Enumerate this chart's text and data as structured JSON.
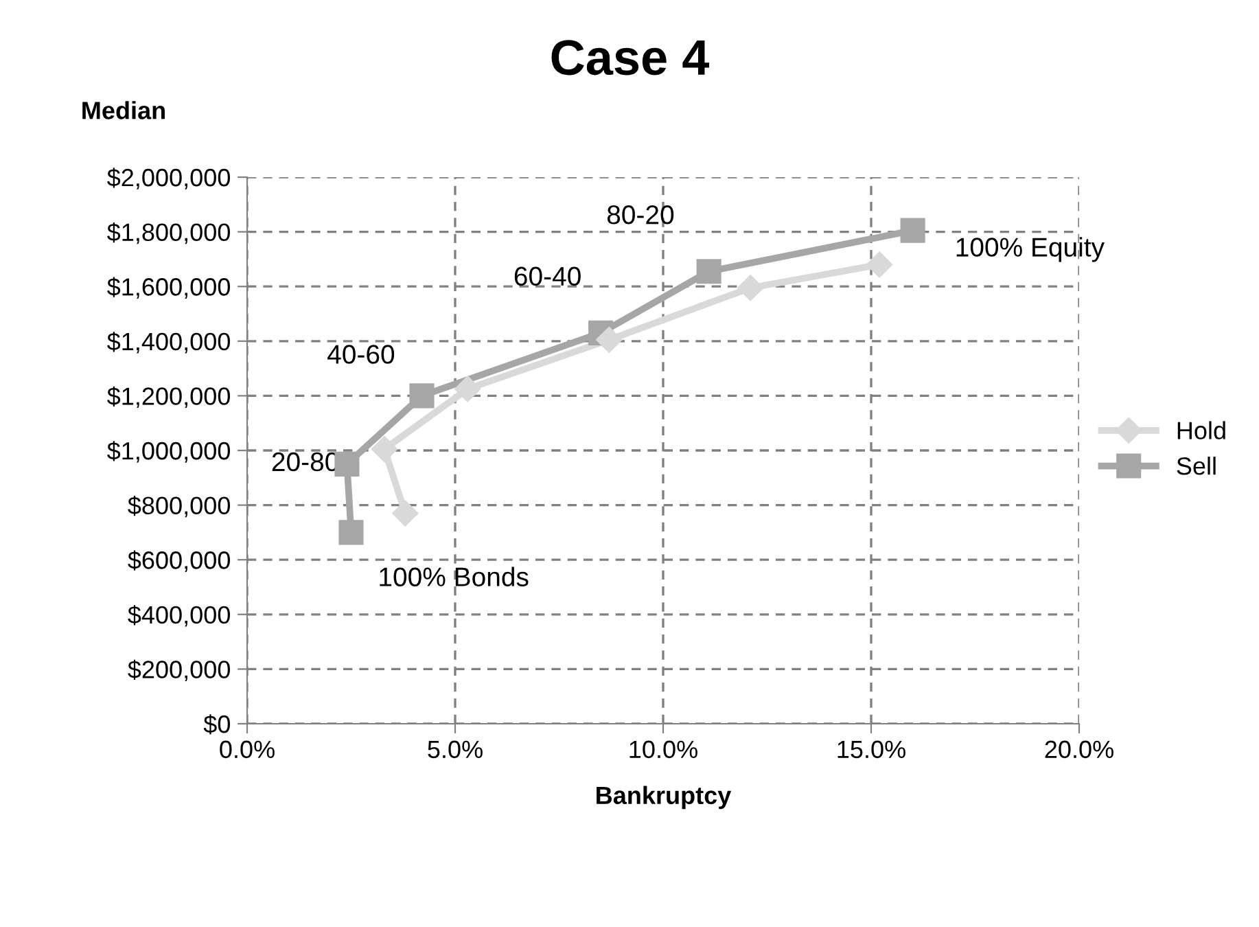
{
  "chart_data": {
    "type": "line",
    "title": "Case 4",
    "xlabel": "Bankruptcy",
    "ylabel": "Median",
    "xlim": [
      0,
      20
    ],
    "xticks": [
      {
        "value": 0,
        "label": "0.0%"
      },
      {
        "value": 5,
        "label": "5.0%"
      },
      {
        "value": 10,
        "label": "10.0%"
      },
      {
        "value": 15,
        "label": "15.0%"
      },
      {
        "value": 20,
        "label": "20.0%"
      }
    ],
    "ylim": [
      0,
      2000000
    ],
    "yticks": [
      {
        "value": 0,
        "label": "$0"
      },
      {
        "value": 200000,
        "label": "$200,000"
      },
      {
        "value": 400000,
        "label": "$400,000"
      },
      {
        "value": 600000,
        "label": "$600,000"
      },
      {
        "value": 800000,
        "label": "$800,000"
      },
      {
        "value": 1000000,
        "label": "$1,000,000"
      },
      {
        "value": 1200000,
        "label": "$1,200,000"
      },
      {
        "value": 1400000,
        "label": "$1,400,000"
      },
      {
        "value": 1600000,
        "label": "$1,600,000"
      },
      {
        "value": 1800000,
        "label": "$1,800,000"
      },
      {
        "value": 2000000,
        "label": "$2,000,000"
      }
    ],
    "grid": true,
    "legend": "right",
    "line_style": "solid",
    "series": [
      {
        "name": "Hold",
        "color": "#d9d9d9",
        "marker": "diamond",
        "x": [
          3.8,
          3.3,
          5.3,
          8.7,
          12.1,
          15.2
        ],
        "values": [
          770000,
          1005000,
          1225000,
          1405000,
          1595000,
          1680000
        ]
      },
      {
        "name": "Sell",
        "color": "#a6a6a6",
        "marker": "square",
        "x": [
          2.5,
          2.4,
          4.2,
          8.5,
          11.1,
          16.0
        ],
        "values": [
          700000,
          950000,
          1200000,
          1430000,
          1655000,
          1805000
        ]
      }
    ],
    "annotations": [
      {
        "text": "100% Bonds",
        "x": 2.5,
        "y": 700000
      },
      {
        "text": "20-80",
        "x": 2.4,
        "y": 950000
      },
      {
        "text": "40-60",
        "x": 4.2,
        "y": 1200000
      },
      {
        "text": "60-40",
        "x": 8.5,
        "y": 1430000
      },
      {
        "text": "80-20",
        "x": 11.1,
        "y": 1655000
      },
      {
        "text": "100% Equity",
        "x": 16.0,
        "y": 1805000
      }
    ]
  }
}
